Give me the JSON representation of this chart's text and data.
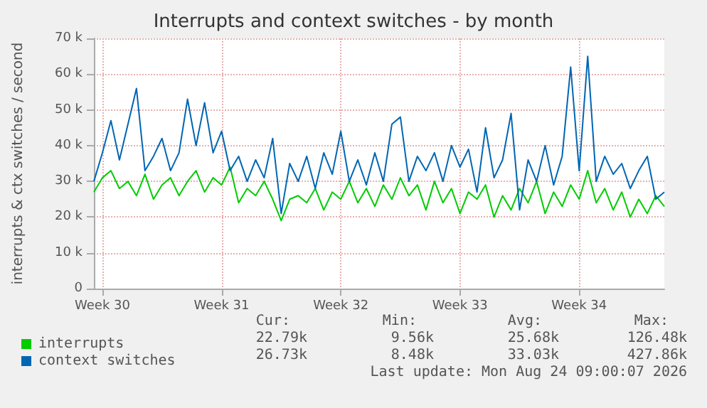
{
  "chart_data": {
    "type": "line",
    "title": "Interrupts and context switches - by month",
    "ylabel": "interrupts & ctx switches / second",
    "categories": [
      null,
      "Week 30",
      null,
      null,
      null,
      null,
      null,
      null,
      null,
      null,
      null,
      null,
      null,
      null,
      null,
      "Week 31",
      null,
      null,
      null,
      null,
      null,
      null,
      null,
      null,
      null,
      null,
      null,
      null,
      null,
      "Week 32",
      null,
      null,
      null,
      null,
      null,
      null,
      null,
      null,
      null,
      null,
      null,
      null,
      null,
      "Week 33",
      null,
      null,
      null,
      null,
      null,
      null,
      null,
      null,
      null,
      null,
      null,
      null,
      null,
      "Week 34",
      null,
      null,
      null,
      null,
      null,
      null,
      null,
      null,
      null,
      null
    ],
    "series": [
      {
        "name": "interrupts",
        "color": "#00cc00",
        "values": [
          27000,
          31000,
          33000,
          28000,
          30000,
          26000,
          32000,
          25000,
          29000,
          31000,
          26000,
          30000,
          33000,
          27000,
          31000,
          29000,
          34000,
          24000,
          28000,
          26000,
          30000,
          25000,
          19000,
          25000,
          26000,
          24000,
          28000,
          22000,
          27000,
          25000,
          30000,
          24000,
          28000,
          23000,
          29000,
          25000,
          31000,
          26000,
          29000,
          22000,
          30000,
          24000,
          28000,
          21000,
          27000,
          25000,
          29000,
          20000,
          26000,
          22000,
          28000,
          24000,
          30000,
          21000,
          27000,
          23000,
          29000,
          25000,
          33000,
          24000,
          28000,
          22000,
          27000,
          20000,
          25000,
          21000,
          26000,
          23000
        ]
      },
      {
        "name": "context switches",
        "color": "#0066b3",
        "values": [
          30000,
          38000,
          47000,
          36000,
          46000,
          56000,
          33000,
          37000,
          42000,
          33000,
          38000,
          53000,
          40000,
          52000,
          38000,
          44000,
          33000,
          37000,
          30000,
          36000,
          31000,
          42000,
          21000,
          35000,
          30000,
          37000,
          28000,
          38000,
          32000,
          44000,
          30000,
          36000,
          29000,
          38000,
          30000,
          46000,
          48000,
          30000,
          37000,
          33000,
          38000,
          30000,
          40000,
          34000,
          39000,
          27000,
          45000,
          31000,
          36000,
          49000,
          22000,
          36000,
          30000,
          40000,
          29000,
          37000,
          62000,
          33000,
          65000,
          30000,
          37000,
          32000,
          35000,
          28000,
          33000,
          37000,
          25000,
          27000
        ]
      }
    ],
    "ylim": [
      0,
      70000
    ],
    "yticks": [
      0,
      {
        "value": 10000,
        "label": "10 k"
      },
      {
        "value": 20000,
        "label": "20 k"
      },
      {
        "value": 30000,
        "label": "30 k"
      },
      {
        "value": 40000,
        "label": "40 k"
      },
      {
        "value": 50000,
        "label": "50 k"
      },
      {
        "value": 60000,
        "label": "60 k"
      },
      {
        "value": 70000,
        "label": "70 k"
      }
    ],
    "grid": true,
    "legend": "bottom",
    "annotations": [
      "Cur:",
      "Min:",
      "Avg:",
      "Max:",
      "22.79k",
      "9.56k",
      "25.68k",
      "126.48k",
      "26.73k",
      "8.48k",
      "33.03k",
      "427.86k",
      "Last update: Mon Aug 24 09:00:07 2026"
    ]
  }
}
